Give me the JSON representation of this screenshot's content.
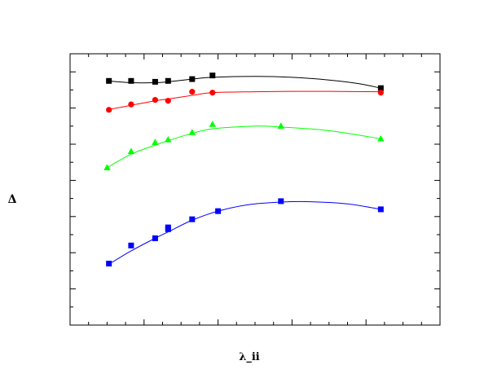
{
  "chart_data": {
    "type": "line",
    "title": "",
    "xlabel": "λ_ii",
    "ylabel": "Δ",
    "xlim": [
      0,
      10
    ],
    "ylim": [
      0,
      15
    ],
    "x_ticks_major": [
      0,
      2,
      4,
      6,
      8,
      10
    ],
    "x_ticks_minor": [
      0.5,
      1,
      1.5,
      2.5,
      3,
      3.5,
      4.5,
      5,
      5.5,
      6.5,
      7,
      7.5,
      8.5,
      9,
      9.5
    ],
    "y_ticks_major": [
      0,
      2,
      4,
      6,
      8,
      10,
      12,
      14
    ],
    "y_ticks_minor": [
      1,
      3,
      5,
      7,
      9,
      11,
      13
    ],
    "tick_labels_shown": false,
    "grid": false,
    "legend": "none",
    "series": [
      {
        "marker": "square",
        "color": "#000000",
        "points": [
          [
            1.05,
            13.5
          ],
          [
            1.65,
            13.5
          ],
          [
            2.3,
            13.45
          ],
          [
            2.65,
            13.5
          ],
          [
            3.3,
            13.6
          ],
          [
            3.85,
            13.8
          ],
          [
            8.4,
            13.1
          ]
        ],
        "curve": [
          [
            1.0,
            13.5
          ],
          [
            1.65,
            13.4
          ],
          [
            2.3,
            13.4
          ],
          [
            2.65,
            13.45
          ],
          [
            3.3,
            13.6
          ],
          [
            3.85,
            13.7
          ],
          [
            5.0,
            13.75
          ],
          [
            6.0,
            13.7
          ],
          [
            7.0,
            13.55
          ],
          [
            7.8,
            13.35
          ],
          [
            8.4,
            13.1
          ]
        ]
      },
      {
        "marker": "circle",
        "color": "#ff0000",
        "points": [
          [
            1.05,
            11.9
          ],
          [
            1.65,
            12.2
          ],
          [
            2.3,
            12.45
          ],
          [
            2.65,
            12.4
          ],
          [
            3.3,
            12.9
          ],
          [
            3.85,
            12.85
          ],
          [
            8.4,
            12.85
          ]
        ],
        "curve": [
          [
            1.0,
            11.9
          ],
          [
            1.65,
            12.15
          ],
          [
            2.3,
            12.4
          ],
          [
            2.65,
            12.5
          ],
          [
            3.3,
            12.7
          ],
          [
            3.85,
            12.85
          ],
          [
            5.0,
            12.9
          ],
          [
            6.0,
            12.92
          ],
          [
            7.0,
            12.92
          ],
          [
            8.4,
            12.9
          ]
        ]
      },
      {
        "marker": "triangle",
        "color": "#00ff00",
        "points": [
          [
            1.0,
            8.7
          ],
          [
            1.65,
            9.6
          ],
          [
            2.3,
            10.1
          ],
          [
            2.65,
            10.25
          ],
          [
            3.3,
            10.65
          ],
          [
            3.85,
            11.1
          ],
          [
            5.7,
            11.0
          ],
          [
            8.4,
            10.3
          ]
        ],
        "curve": [
          [
            1.0,
            8.7
          ],
          [
            1.65,
            9.45
          ],
          [
            2.3,
            9.95
          ],
          [
            2.65,
            10.2
          ],
          [
            3.3,
            10.6
          ],
          [
            3.85,
            10.85
          ],
          [
            5.0,
            11.0
          ],
          [
            5.7,
            10.95
          ],
          [
            7.0,
            10.75
          ],
          [
            8.4,
            10.3
          ]
        ]
      },
      {
        "marker": "square",
        "color": "#0000ff",
        "points": [
          [
            1.05,
            3.4
          ],
          [
            1.65,
            4.4
          ],
          [
            2.3,
            4.8
          ],
          [
            2.65,
            5.3
          ],
          [
            2.65,
            5.4
          ],
          [
            3.3,
            5.85
          ],
          [
            4.0,
            6.3
          ],
          [
            5.7,
            6.85
          ],
          [
            8.4,
            6.4
          ]
        ],
        "curve": [
          [
            1.0,
            3.3
          ],
          [
            1.65,
            4.1
          ],
          [
            2.3,
            4.8
          ],
          [
            2.65,
            5.15
          ],
          [
            3.3,
            5.8
          ],
          [
            4.0,
            6.3
          ],
          [
            4.8,
            6.65
          ],
          [
            5.7,
            6.8
          ],
          [
            6.5,
            6.82
          ],
          [
            7.5,
            6.7
          ],
          [
            8.4,
            6.4
          ]
        ]
      }
    ]
  }
}
